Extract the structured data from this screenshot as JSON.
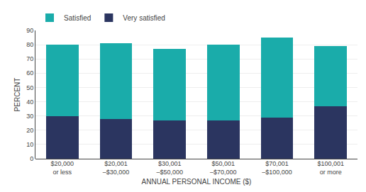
{
  "chart_data": {
    "type": "bar",
    "stacked": true,
    "categories": [
      "$20,000\nor less",
      "$20,001\n–$30,000",
      "$30,001\n–$50,000",
      "$50,001\n–$70,000",
      "$70,001\n–$100,000",
      "$100,001\nor more"
    ],
    "series": [
      {
        "name": "Very satisfied",
        "color": "#2b3560",
        "values": [
          30,
          28,
          27,
          27,
          29,
          37
        ]
      },
      {
        "name": "Satisfied",
        "color": "#1aacaa",
        "values": [
          50,
          53,
          50,
          53,
          56,
          42
        ]
      }
    ],
    "xlabel": "ANNUAL PERSONAL INCOME ($)",
    "ylabel": "PERCENT",
    "ylim": [
      0,
      90
    ],
    "yticks": [
      0,
      10,
      20,
      30,
      40,
      50,
      60,
      70,
      80,
      90
    ],
    "grid": true,
    "legend": "upper left"
  }
}
